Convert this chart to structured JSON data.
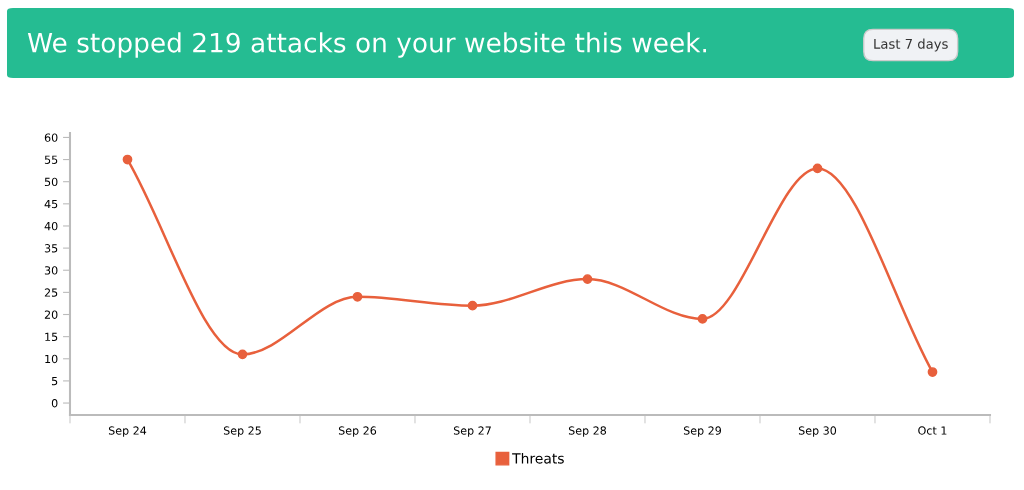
{
  "chart_data": {
    "type": "line",
    "title": "We stopped 219 attacks on your website this week.",
    "annotations": [
      "Last 7 days"
    ],
    "categories": [
      "Sep 24",
      "Sep 25",
      "Sep 26",
      "Sep 27",
      "Sep 28",
      "Sep 29",
      "Sep 30",
      "Oct 1"
    ],
    "series": [
      {
        "name": "Threats",
        "color": "#e8603c",
        "values": [
          55,
          11,
          24,
          22,
          28,
          19,
          53,
          7
        ]
      }
    ],
    "ylim": [
      -2.7,
      61
    ],
    "yticks": [
      0,
      5,
      10,
      15,
      20,
      25,
      30,
      35,
      40,
      45,
      50,
      55,
      60
    ],
    "grid": false,
    "legend": "bottom",
    "marker": "circle",
    "line_style": "solid"
  }
}
